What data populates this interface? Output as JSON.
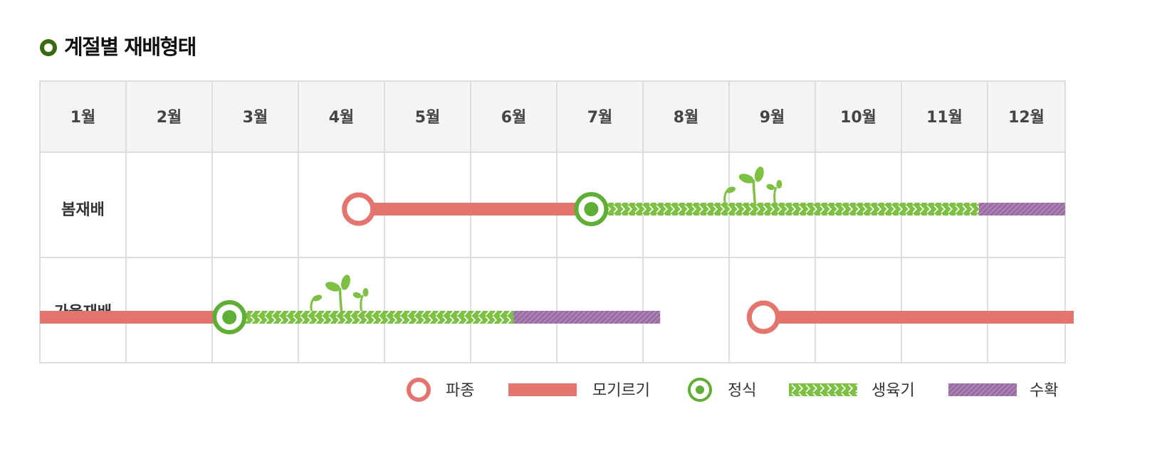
{
  "title": "계절별 재배형태",
  "colors": {
    "sowing": "#e3756e",
    "nursery": "#e3756e",
    "transplant": "#5fae35",
    "growth": "#7dc043",
    "harvest": "#9a6ea4",
    "sprout": "#7dc043",
    "title_mark": "#3c6a12"
  },
  "chart_data": {
    "type": "table",
    "months": [
      "1월",
      "2월",
      "3월",
      "4월",
      "5월",
      "6월",
      "7월",
      "8월",
      "9월",
      "10월",
      "11월",
      "12월"
    ],
    "rows": [
      {
        "label": "봄재배",
        "phases": [
          {
            "phase": "nursery",
            "start": 3.7,
            "end": 6.4
          },
          {
            "phase": "growth",
            "start": 6.4,
            "end": 10.9
          },
          {
            "phase": "harvest",
            "start": 10.9,
            "end": 11.9
          }
        ],
        "markers": [
          {
            "phase": "sowing",
            "at": 3.7
          },
          {
            "phase": "transplant",
            "at": 6.4
          }
        ],
        "sprout_at": 8.3
      },
      {
        "label": "가을재배",
        "phases": [
          {
            "phase": "nursery",
            "start": 0.0,
            "end": 2.2
          },
          {
            "phase": "growth",
            "start": 2.2,
            "end": 5.5
          },
          {
            "phase": "harvest",
            "start": 5.5,
            "end": 7.2
          },
          {
            "phase": "nursery",
            "start": 8.4,
            "end": 12.0
          }
        ],
        "markers": [
          {
            "phase": "transplant",
            "at": 2.2
          },
          {
            "phase": "sowing",
            "at": 8.4
          }
        ],
        "sprout_at": 3.5
      }
    ],
    "legend": [
      {
        "phase": "sowing",
        "label": "파종"
      },
      {
        "phase": "nursery",
        "label": "모기르기"
      },
      {
        "phase": "transplant",
        "label": "정식"
      },
      {
        "phase": "growth",
        "label": "생육기"
      },
      {
        "phase": "harvest",
        "label": "수확"
      }
    ]
  }
}
